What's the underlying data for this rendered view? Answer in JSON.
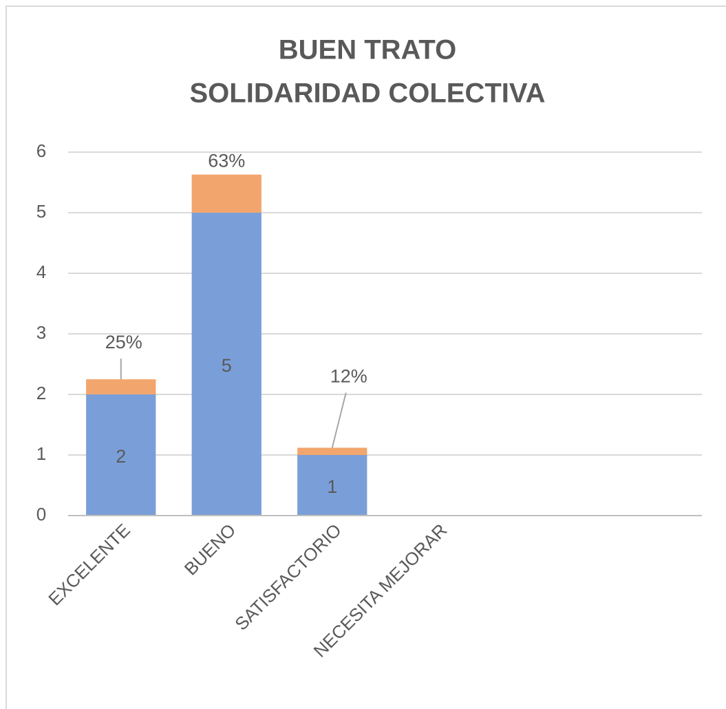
{
  "chart_data": {
    "type": "stacked_bar",
    "title": "BUEN TRATO",
    "subtitle": "SOLIDARIDAD COLECTIVA",
    "categories": [
      "EXCELENTE",
      "BUENO",
      "SATISFACTORIO",
      "NECESITA MEJORAR",
      null,
      null
    ],
    "series": [
      {
        "color": "#7a9fd8",
        "values": [
          2,
          5,
          1,
          null,
          null,
          null
        ]
      },
      {
        "color": "#f2a66e",
        "values": [
          0.25,
          0.63,
          0.12,
          null,
          null,
          null
        ],
        "value_labels": [
          "25%",
          "63%",
          "12%",
          null,
          null,
          null
        ]
      }
    ],
    "ylim": [
      0,
      6
    ],
    "yticks": [
      0,
      1,
      2,
      3,
      4,
      5,
      6
    ],
    "grid": true
  }
}
